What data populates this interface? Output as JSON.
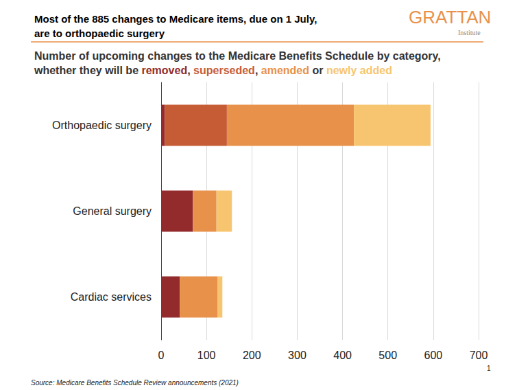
{
  "chart_data": {
    "type": "bar",
    "orientation": "horizontal",
    "stacked": true,
    "grid": true,
    "title": "Most of the 885 changes to Medicare items, due on 1 July,\nare to orthopaedic surgery",
    "subtitle": "Number of upcoming changes to the Medicare Benefits Schedule by category,\nwhether they will be removed, superseded, amended or newly added",
    "categories": [
      "Orthopaedic surgery",
      "General surgery",
      "Cardiac services"
    ],
    "series": [
      {
        "name": "removed",
        "color": "#932b2d",
        "values": [
          8,
          70,
          41
        ]
      },
      {
        "name": "superseded",
        "color": "#c65c36",
        "values": [
          137,
          0,
          0
        ]
      },
      {
        "name": "amended",
        "color": "#e8914a",
        "values": [
          280,
          52,
          83
        ]
      },
      {
        "name": "newly added",
        "color": "#f7c56f",
        "values": [
          169,
          34,
          11
        ]
      }
    ],
    "xlim": [
      0,
      700
    ],
    "xticks": [
      0,
      100,
      200,
      300,
      400,
      500,
      600,
      700
    ],
    "annotations": [
      "GRATTAN",
      "Institute",
      "Source: Medicare Benefits Schedule Review announcements (2021)",
      "1"
    ]
  }
}
